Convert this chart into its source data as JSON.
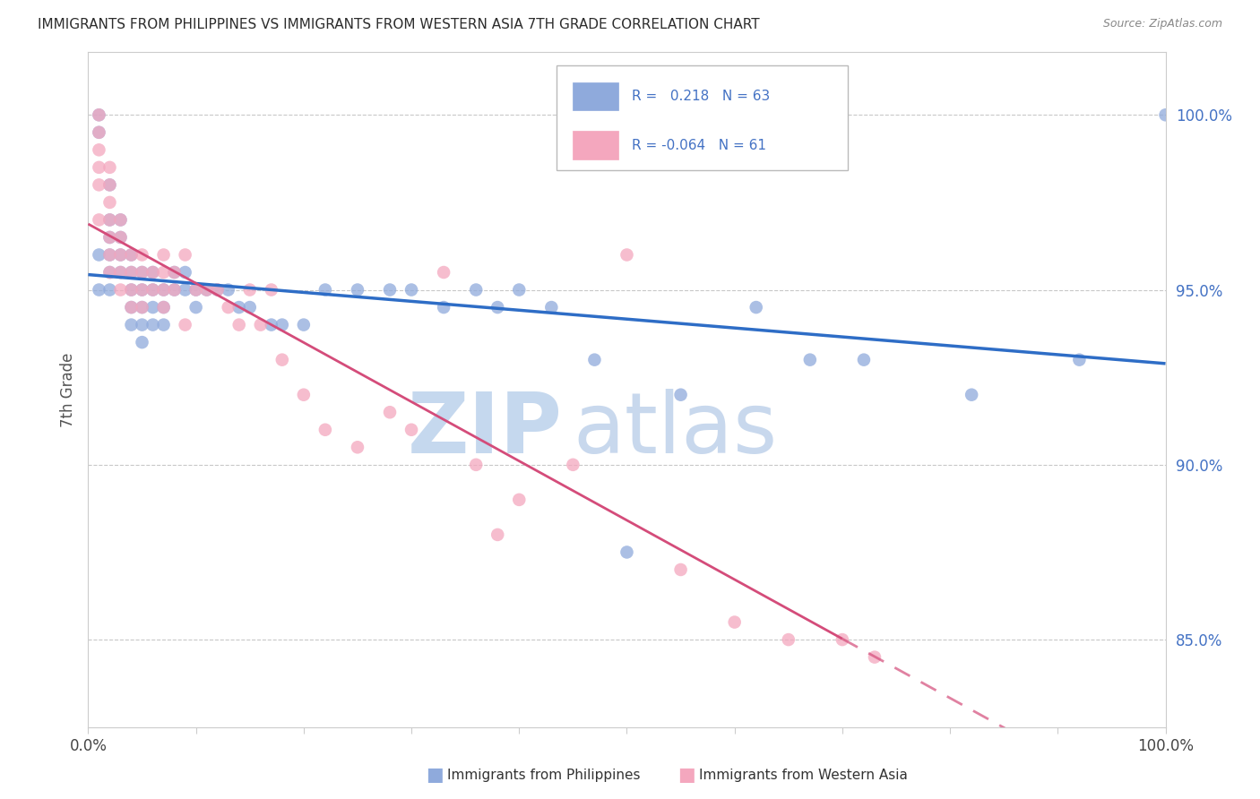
{
  "title": "IMMIGRANTS FROM PHILIPPINES VS IMMIGRANTS FROM WESTERN ASIA 7TH GRADE CORRELATION CHART",
  "source": "Source: ZipAtlas.com",
  "ylabel": "7th Grade",
  "blue_label": "Immigrants from Philippines",
  "pink_label": "Immigrants from Western Asia",
  "blue_R": 0.218,
  "blue_N": 63,
  "pink_R": -0.064,
  "pink_N": 61,
  "blue_scatter_x": [
    1,
    1,
    1,
    1,
    2,
    2,
    2,
    2,
    2,
    2,
    3,
    3,
    3,
    3,
    4,
    4,
    4,
    4,
    4,
    5,
    5,
    5,
    5,
    5,
    6,
    6,
    6,
    6,
    7,
    7,
    7,
    8,
    8,
    9,
    9,
    10,
    10,
    11,
    12,
    13,
    14,
    15,
    17,
    18,
    20,
    22,
    25,
    28,
    30,
    33,
    36,
    38,
    40,
    43,
    47,
    50,
    55,
    62,
    67,
    72,
    82,
    92,
    100
  ],
  "blue_scatter_y": [
    100,
    99.5,
    96,
    95,
    98,
    97,
    96.5,
    96,
    95.5,
    95,
    97,
    96.5,
    96,
    95.5,
    96,
    95.5,
    95,
    94.5,
    94,
    95.5,
    95,
    94.5,
    94,
    93.5,
    95.5,
    95,
    94.5,
    94,
    95,
    94.5,
    94,
    95.5,
    95,
    95.5,
    95,
    95,
    94.5,
    95,
    95,
    95,
    94.5,
    94.5,
    94,
    94,
    94,
    95,
    95,
    95,
    95,
    94.5,
    95,
    94.5,
    95,
    94.5,
    93,
    87.5,
    92,
    94.5,
    93,
    93,
    92,
    93,
    100
  ],
  "pink_scatter_x": [
    1,
    1,
    1,
    1,
    1,
    1,
    2,
    2,
    2,
    2,
    2,
    2,
    2,
    3,
    3,
    3,
    3,
    3,
    4,
    4,
    4,
    4,
    5,
    5,
    5,
    5,
    6,
    6,
    7,
    7,
    7,
    7,
    8,
    8,
    9,
    9,
    10,
    11,
    12,
    13,
    14,
    15,
    16,
    17,
    18,
    20,
    22,
    25,
    28,
    30,
    33,
    36,
    38,
    40,
    45,
    50,
    55,
    60,
    65,
    70,
    73
  ],
  "pink_scatter_y": [
    100,
    99.5,
    99,
    98.5,
    98,
    97,
    98.5,
    98,
    97.5,
    97,
    96.5,
    96,
    95.5,
    97,
    96.5,
    96,
    95.5,
    95,
    96,
    95.5,
    95,
    94.5,
    96,
    95.5,
    95,
    94.5,
    95.5,
    95,
    96,
    95.5,
    95,
    94.5,
    95.5,
    95,
    96,
    94,
    95,
    95,
    95,
    94.5,
    94,
    95,
    94,
    95,
    93,
    92,
    91,
    90.5,
    91.5,
    91,
    95.5,
    90,
    88,
    89,
    90,
    96,
    87,
    85.5,
    85,
    85,
    84.5
  ],
  "blue_line_color": "#2E6DC6",
  "pink_line_color": "#D44C7A",
  "blue_dot_color": "#8FAADC",
  "pink_dot_color": "#F4A7BE",
  "background_color": "#FFFFFF",
  "grid_color": "#C8C8C8",
  "right_axis_color": "#4472C4",
  "right_yticks": [
    85.0,
    90.0,
    95.0,
    100.0
  ],
  "ylim_min": 82.5,
  "ylim_max": 101.8,
  "xlim_min": 0,
  "xlim_max": 100,
  "watermark_zip": "ZIP",
  "watermark_atlas": "atlas",
  "watermark_color_zip": "#C5D8EE",
  "watermark_color_atlas": "#C8D8ED",
  "legend_blue_text_color": "#4472C4",
  "legend_pink_text_color": "#D44C7A",
  "dot_size": 110,
  "dot_alpha": 0.75
}
